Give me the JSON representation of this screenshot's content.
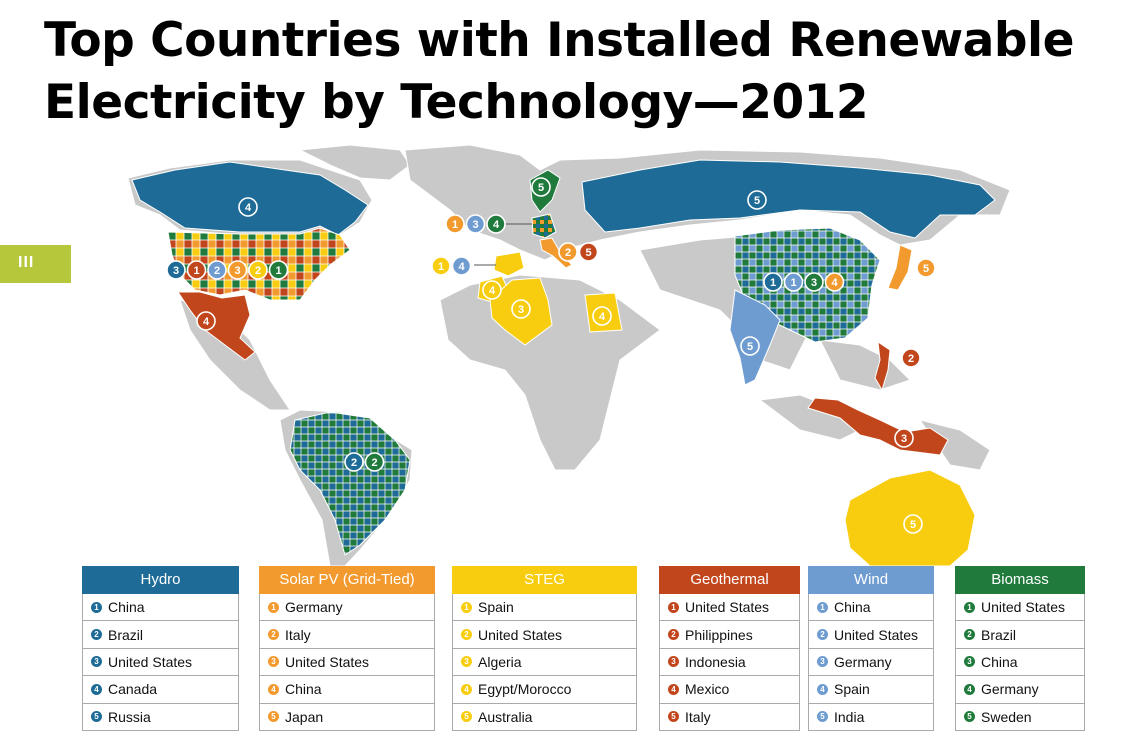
{
  "title": "Top Countries with Installed Renewable Electricity by Technology—2012",
  "slide_badge": "III",
  "colors": {
    "hydro": "#1d6b96",
    "solar_pv": "#f29a2e",
    "steg": "#f8cd0f",
    "geothermal": "#c2461c",
    "wind": "#6e9cd0",
    "biomass": "#1f7a3c",
    "land": "#c9c9c9"
  },
  "legend": [
    {
      "key": "hydro",
      "label": "Hydro",
      "items": [
        "China",
        "Brazil",
        "United States",
        "Canada",
        "Russia"
      ]
    },
    {
      "key": "solar_pv",
      "label": "Solar PV (Grid-Tied)",
      "items": [
        "Germany",
        "Italy",
        "United States",
        "China",
        "Japan"
      ]
    },
    {
      "key": "steg",
      "label": "STEG",
      "items": [
        "Spain",
        "United States",
        "Algeria",
        "Egypt/Morocco",
        "Australia"
      ]
    },
    {
      "key": "geothermal",
      "label": "Geothermal",
      "items": [
        "United States",
        "Philippines",
        "Indonesia",
        "Mexico",
        "Italy"
      ]
    },
    {
      "key": "wind",
      "label": "Wind",
      "items": [
        "China",
        "United States",
        "Germany",
        "Spain",
        "India"
      ]
    },
    {
      "key": "biomass",
      "label": "Biomass",
      "items": [
        "United States",
        "Brazil",
        "China",
        "Germany",
        "Sweden"
      ]
    }
  ],
  "rank_numbers": [
    "1",
    "2",
    "3",
    "4",
    "5"
  ],
  "map_markers": [
    {
      "region": "Canada",
      "ranks": [
        {
          "tech": "hydro",
          "rank": "4"
        }
      ]
    },
    {
      "region": "Russia",
      "ranks": [
        {
          "tech": "hydro",
          "rank": "5"
        }
      ]
    },
    {
      "region": "Sweden",
      "ranks": [
        {
          "tech": "biomass",
          "rank": "5"
        }
      ]
    },
    {
      "region": "United States",
      "ranks": [
        {
          "tech": "hydro",
          "rank": "3"
        },
        {
          "tech": "geothermal",
          "rank": "1"
        },
        {
          "tech": "wind",
          "rank": "2"
        },
        {
          "tech": "solar_pv",
          "rank": "3"
        },
        {
          "tech": "steg",
          "rank": "2"
        },
        {
          "tech": "biomass",
          "rank": "1"
        }
      ]
    },
    {
      "region": "Mexico",
      "ranks": [
        {
          "tech": "geothermal",
          "rank": "4"
        }
      ]
    },
    {
      "region": "Germany",
      "ranks": [
        {
          "tech": "solar_pv",
          "rank": "1"
        },
        {
          "tech": "wind",
          "rank": "3"
        },
        {
          "tech": "biomass",
          "rank": "4"
        }
      ]
    },
    {
      "region": "Italy",
      "ranks": [
        {
          "tech": "solar_pv",
          "rank": "2"
        },
        {
          "tech": "geothermal",
          "rank": "5"
        }
      ]
    },
    {
      "region": "Spain",
      "ranks": [
        {
          "tech": "steg",
          "rank": "1"
        },
        {
          "tech": "wind",
          "rank": "4"
        }
      ]
    },
    {
      "region": "Morocco",
      "ranks": [
        {
          "tech": "steg",
          "rank": "4"
        }
      ]
    },
    {
      "region": "Algeria",
      "ranks": [
        {
          "tech": "steg",
          "rank": "3"
        }
      ]
    },
    {
      "region": "Egypt",
      "ranks": [
        {
          "tech": "steg",
          "rank": "4"
        }
      ]
    },
    {
      "region": "China",
      "ranks": [
        {
          "tech": "hydro",
          "rank": "1"
        },
        {
          "tech": "wind",
          "rank": "1"
        },
        {
          "tech": "biomass",
          "rank": "3"
        },
        {
          "tech": "solar_pv",
          "rank": "4"
        }
      ]
    },
    {
      "region": "Japan",
      "ranks": [
        {
          "tech": "solar_pv",
          "rank": "5"
        }
      ]
    },
    {
      "region": "India",
      "ranks": [
        {
          "tech": "wind",
          "rank": "5"
        }
      ]
    },
    {
      "region": "Philippines",
      "ranks": [
        {
          "tech": "geothermal",
          "rank": "2"
        }
      ]
    },
    {
      "region": "Indonesia",
      "ranks": [
        {
          "tech": "geothermal",
          "rank": "3"
        }
      ]
    },
    {
      "region": "Brazil",
      "ranks": [
        {
          "tech": "hydro",
          "rank": "2"
        },
        {
          "tech": "biomass",
          "rank": "2"
        }
      ]
    },
    {
      "region": "Australia",
      "ranks": [
        {
          "tech": "steg",
          "rank": "5"
        }
      ]
    }
  ]
}
